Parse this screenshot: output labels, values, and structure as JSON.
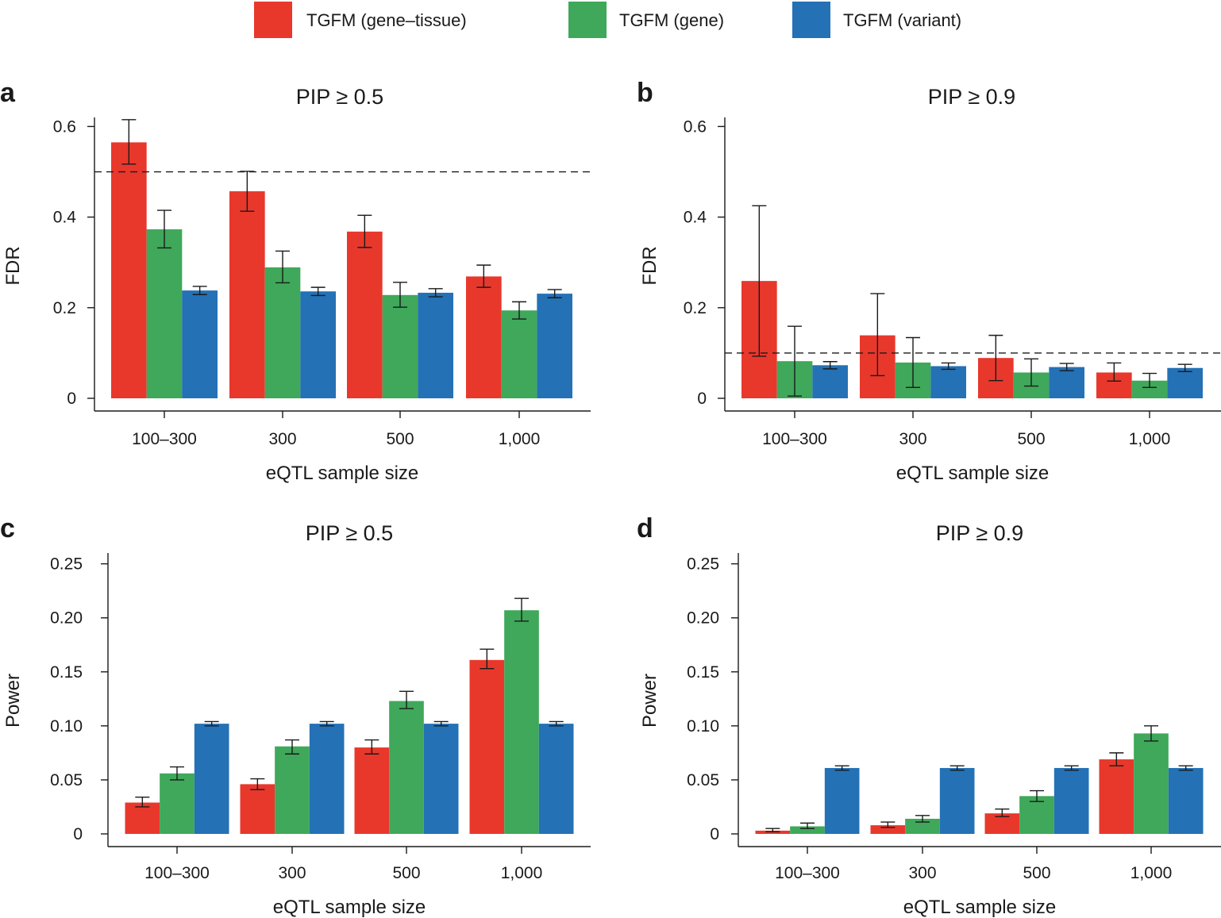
{
  "legend": [
    {
      "label": "TGFM (gene–tissue)",
      "color": "#e8382c"
    },
    {
      "label": "TGFM (gene)",
      "color": "#3fa85a"
    },
    {
      "label": "TGFM (variant)",
      "color": "#2471b5"
    }
  ],
  "chart_data": [
    {
      "panel": "a",
      "type": "bar",
      "title": "PIP ≥ 0.5",
      "xlabel": "eQTL sample size",
      "ylabel": "FDR",
      "categories": [
        "100–300",
        "300",
        "500",
        "1,000"
      ],
      "ylim": [
        0,
        0.62
      ],
      "yticks": [
        0,
        0.2,
        0.4,
        0.6
      ],
      "ytick_labels": [
        "0",
        "0.2",
        "0.4",
        "0.6"
      ],
      "reference_line": 0.5,
      "series": [
        {
          "name": "TGFM (gene–tissue)",
          "values": [
            0.565,
            0.457,
            0.368,
            0.269
          ],
          "err_low": [
            0.517,
            0.413,
            0.333,
            0.245
          ],
          "err_high": [
            0.615,
            0.501,
            0.404,
            0.294
          ]
        },
        {
          "name": "TGFM (gene)",
          "values": [
            0.373,
            0.289,
            0.228,
            0.194
          ],
          "err_low": [
            0.332,
            0.255,
            0.201,
            0.175
          ],
          "err_high": [
            0.415,
            0.325,
            0.256,
            0.213
          ]
        },
        {
          "name": "TGFM (variant)",
          "values": [
            0.238,
            0.236,
            0.233,
            0.231
          ],
          "err_low": [
            0.229,
            0.227,
            0.224,
            0.222
          ],
          "err_high": [
            0.247,
            0.245,
            0.242,
            0.24
          ]
        }
      ]
    },
    {
      "panel": "b",
      "type": "bar",
      "title": "PIP ≥ 0.9",
      "xlabel": "eQTL sample size",
      "ylabel": "FDR",
      "categories": [
        "100–300",
        "300",
        "500",
        "1,000"
      ],
      "ylim": [
        0,
        0.62
      ],
      "yticks": [
        0,
        0.2,
        0.4,
        0.6
      ],
      "ytick_labels": [
        "0",
        "0.2",
        "0.4",
        "0.6"
      ],
      "reference_line": 0.1,
      "series": [
        {
          "name": "TGFM (gene–tissue)",
          "values": [
            0.259,
            0.139,
            0.089,
            0.057
          ],
          "err_low": [
            0.093,
            0.05,
            0.039,
            0.038
          ],
          "err_high": [
            0.425,
            0.231,
            0.139,
            0.078
          ]
        },
        {
          "name": "TGFM (gene)",
          "values": [
            0.082,
            0.079,
            0.057,
            0.039
          ],
          "err_low": [
            0.005,
            0.024,
            0.027,
            0.024
          ],
          "err_high": [
            0.159,
            0.134,
            0.087,
            0.055
          ]
        },
        {
          "name": "TGFM (variant)",
          "values": [
            0.073,
            0.071,
            0.069,
            0.067
          ],
          "err_low": [
            0.065,
            0.064,
            0.061,
            0.059
          ],
          "err_high": [
            0.081,
            0.078,
            0.077,
            0.075
          ]
        }
      ]
    },
    {
      "panel": "c",
      "type": "bar",
      "title": "PIP ≥ 0.5",
      "xlabel": "eQTL sample size",
      "ylabel": "Power",
      "categories": [
        "100–300",
        "300",
        "500",
        "1,000"
      ],
      "ylim": [
        0,
        0.26
      ],
      "yticks": [
        0,
        0.05,
        0.1,
        0.15,
        0.2,
        0.25
      ],
      "ytick_labels": [
        "0",
        "0.05",
        "0.10",
        "0.15",
        "0.20",
        "0.25"
      ],
      "series": [
        {
          "name": "TGFM (gene–tissue)",
          "values": [
            0.029,
            0.046,
            0.08,
            0.161
          ],
          "err_low": [
            0.025,
            0.041,
            0.074,
            0.153
          ],
          "err_high": [
            0.034,
            0.051,
            0.087,
            0.171
          ]
        },
        {
          "name": "TGFM (gene)",
          "values": [
            0.056,
            0.081,
            0.123,
            0.207
          ],
          "err_low": [
            0.05,
            0.074,
            0.116,
            0.197
          ],
          "err_high": [
            0.062,
            0.087,
            0.132,
            0.218
          ]
        },
        {
          "name": "TGFM (variant)",
          "values": [
            0.102,
            0.102,
            0.102,
            0.102
          ],
          "err_low": [
            0.1,
            0.1,
            0.1,
            0.1
          ],
          "err_high": [
            0.104,
            0.104,
            0.104,
            0.104
          ]
        }
      ]
    },
    {
      "panel": "d",
      "type": "bar",
      "title": "PIP ≥ 0.9",
      "xlabel": "eQTL sample size",
      "ylabel": "Power",
      "categories": [
        "100–300",
        "300",
        "500",
        "1,000"
      ],
      "ylim": [
        0,
        0.26
      ],
      "yticks": [
        0,
        0.05,
        0.1,
        0.15,
        0.2,
        0.25
      ],
      "ytick_labels": [
        "0",
        "0.05",
        "0.10",
        "0.15",
        "0.20",
        "0.25"
      ],
      "series": [
        {
          "name": "TGFM (gene–tissue)",
          "values": [
            0.003,
            0.008,
            0.019,
            0.069
          ],
          "err_low": [
            0.002,
            0.006,
            0.016,
            0.063
          ],
          "err_high": [
            0.005,
            0.011,
            0.023,
            0.075
          ]
        },
        {
          "name": "TGFM (gene)",
          "values": [
            0.007,
            0.014,
            0.035,
            0.093
          ],
          "err_low": [
            0.005,
            0.011,
            0.03,
            0.086
          ],
          "err_high": [
            0.01,
            0.017,
            0.04,
            0.1
          ]
        },
        {
          "name": "TGFM (variant)",
          "values": [
            0.061,
            0.061,
            0.061,
            0.061
          ],
          "err_low": [
            0.059,
            0.059,
            0.059,
            0.059
          ],
          "err_high": [
            0.063,
            0.063,
            0.063,
            0.063
          ]
        }
      ]
    }
  ]
}
